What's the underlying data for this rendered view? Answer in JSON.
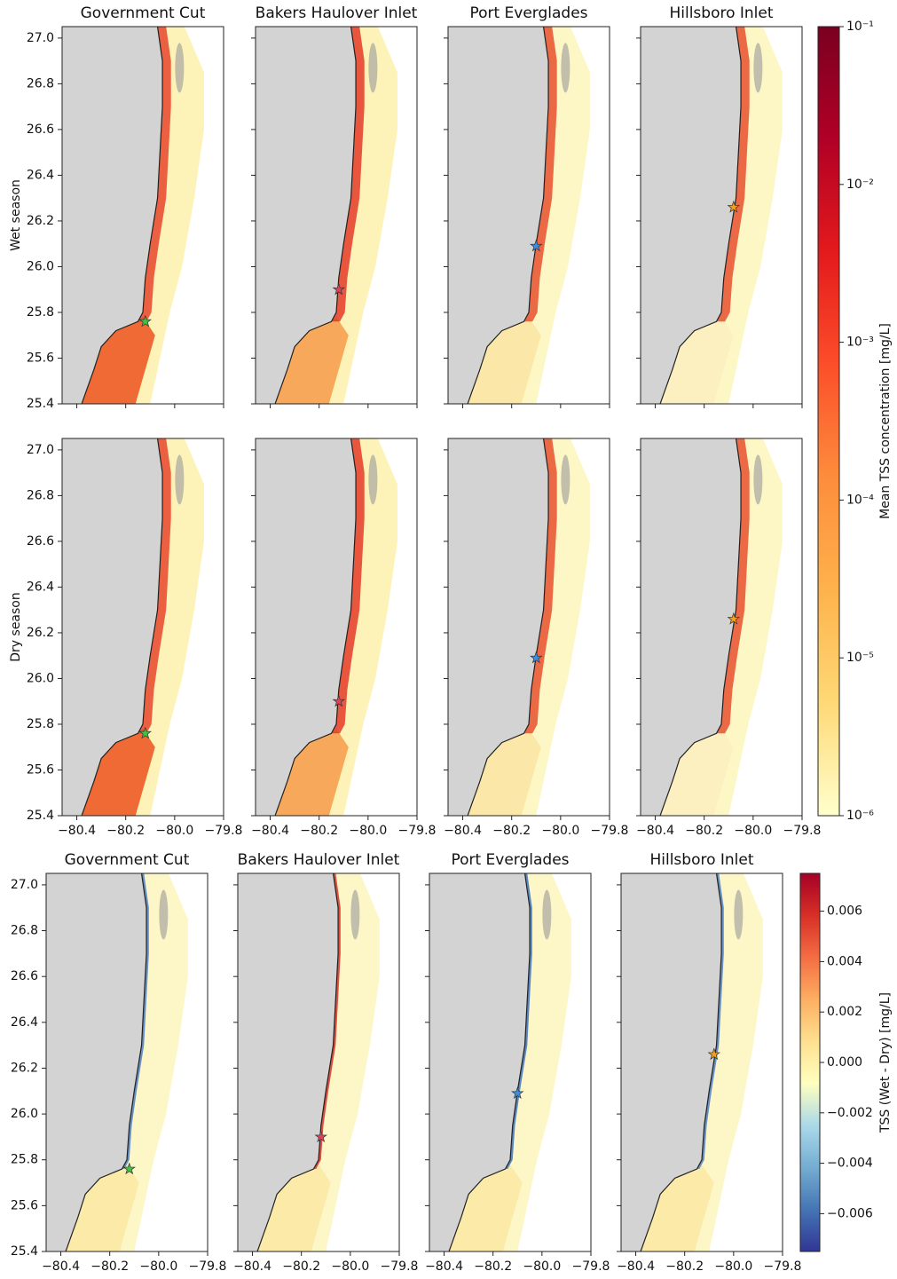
{
  "chart_data": {
    "type": "map",
    "sites": [
      {
        "title": "Government Cut",
        "lon": -80.12,
        "lat": 25.76,
        "color": "#3ec43e"
      },
      {
        "title": "Bakers Haulover Inlet",
        "lon": -80.12,
        "lat": 25.9,
        "color": "#e0405a"
      },
      {
        "title": "Port Everglades",
        "lon": -80.1,
        "lat": 26.09,
        "color": "#3a8fe0"
      },
      {
        "title": "Hillsboro Inlet",
        "lon": -80.08,
        "lat": 26.26,
        "color": "#f0a020"
      }
    ],
    "row_labels": [
      "Wet season",
      "Dry season"
    ],
    "xlim": [
      -80.46,
      -79.8
    ],
    "xticks": [
      {
        "value": -80.4,
        "label": "−80.4"
      },
      {
        "value": -80.2,
        "label": "−80.2"
      },
      {
        "value": -80.0,
        "label": "−80.0"
      },
      {
        "value": -79.8,
        "label": "−79.8"
      }
    ],
    "ylim": [
      25.4,
      27.05
    ],
    "yticks": [
      {
        "value": 27.0,
        "label": "27.0"
      },
      26.8,
      26.6,
      26.4,
      26.2,
      {
        "value": 26.0,
        "label": "26.0"
      },
      25.8,
      25.6,
      25.4
    ],
    "colorbars": [
      {
        "label": "Mean TSS concentration [mg/L]",
        "log": true,
        "lim": [
          1e-06,
          0.1
        ],
        "colors": [
          "#ffffcc",
          "#fed976",
          "#feb24c",
          "#fd8d3c",
          "#fc4e2a",
          "#e31a1c",
          "#b10026",
          "#7a0020"
        ],
        "ticks": [
          {
            "value": 1e-06,
            "label": "10⁻⁶"
          },
          {
            "value": 1e-05,
            "label": "10⁻⁵"
          },
          {
            "value": 0.0001,
            "label": "10⁻⁴"
          },
          {
            "value": 0.001,
            "label": "10⁻³"
          },
          {
            "value": 0.01,
            "label": "10⁻²"
          },
          {
            "value": 0.1,
            "label": "10⁻¹"
          }
        ]
      },
      {
        "label": "TSS (Wet - Dry) [mg/L]",
        "log": false,
        "lim": [
          -0.0075,
          0.0075
        ],
        "colors": [
          "#313695",
          "#4575b4",
          "#74add1",
          "#abd9e9",
          "#ffffbf",
          "#fee090",
          "#fdae61",
          "#f46d43",
          "#d73027",
          "#a50026"
        ],
        "ticks": [
          {
            "value": -0.006,
            "label": "−0.006"
          },
          {
            "value": -0.004,
            "label": "−0.004"
          },
          {
            "value": -0.002,
            "label": "−0.002"
          },
          {
            "value": 0,
            "label": "0.000"
          },
          0.002,
          0.004,
          0.006
        ]
      }
    ]
  }
}
